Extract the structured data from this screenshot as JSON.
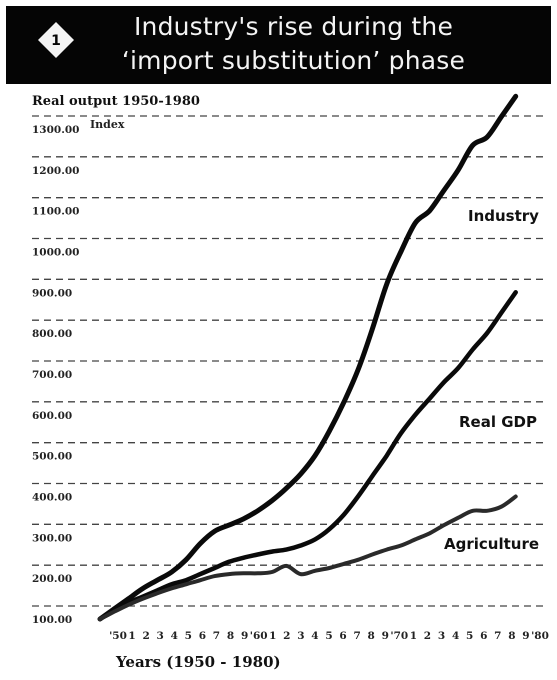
{
  "header": {
    "badge": "1",
    "title_line1": "Industry's rise during the",
    "title_line2": "‘import substitution’ phase"
  },
  "chart_data": {
    "type": "line",
    "title": "Industry's rise during the ‘import substitution’ phase",
    "subtitle": "Real output 1950-1980",
    "ylabel": "Index",
    "xlabel": "Years (1950 - 1980)",
    "ylim": [
      100,
      1300
    ],
    "yticks": [
      "100.00",
      "200.00",
      "300.00",
      "400.00",
      "500.00",
      "600.00",
      "700.00",
      "800.00",
      "900.00",
      "1000.00",
      "1100.00",
      "1200.00",
      "1300.00"
    ],
    "xlim": [
      1950,
      1980
    ],
    "x_tick_labels": [
      "'50",
      "1",
      "2",
      "3",
      "4",
      "5",
      "6",
      "7",
      "8",
      "9",
      "'60",
      "1",
      "2",
      "3",
      "4",
      "5",
      "6",
      "7",
      "8",
      "9",
      "'70",
      "1",
      "2",
      "3",
      "4",
      "5",
      "6",
      "7",
      "8",
      "9",
      "'80"
    ],
    "grid": "horizontal dashed",
    "colors": {
      "Industry": "#0a0a0a",
      "Real GDP": "#0a0a0a",
      "Agriculture": "#2a2a2a"
    },
    "series": [
      {
        "name": "Industry",
        "x": [
          1950,
          1951,
          1952,
          1953,
          1954,
          1955,
          1956,
          1957,
          1958,
          1959,
          1960,
          1961,
          1962,
          1963,
          1964,
          1965,
          1966,
          1967,
          1968,
          1969,
          1970,
          1971,
          1972,
          1973,
          1974,
          1975,
          1976,
          1977,
          1978,
          1979
        ],
        "values": [
          100,
          125,
          150,
          175,
          195,
          215,
          245,
          285,
          315,
          330,
          345,
          365,
          390,
          420,
          455,
          500,
          560,
          630,
          710,
          810,
          920,
          1000,
          1070,
          1100,
          1150,
          1200,
          1260,
          1280,
          1330,
          1380
        ]
      },
      {
        "name": "Real GDP",
        "x": [
          1950,
          1951,
          1952,
          1953,
          1954,
          1955,
          1956,
          1957,
          1958,
          1959,
          1960,
          1961,
          1962,
          1963,
          1964,
          1965,
          1966,
          1967,
          1968,
          1969,
          1970,
          1971,
          1972,
          1973,
          1974,
          1975,
          1976,
          1977,
          1978,
          1979
        ],
        "values": [
          100,
          120,
          140,
          155,
          170,
          185,
          195,
          210,
          225,
          240,
          250,
          258,
          265,
          270,
          280,
          295,
          320,
          355,
          400,
          450,
          500,
          555,
          600,
          640,
          680,
          715,
          760,
          800,
          850,
          900
        ]
      },
      {
        "name": "Agriculture",
        "x": [
          1950,
          1951,
          1952,
          1953,
          1954,
          1955,
          1956,
          1957,
          1958,
          1959,
          1960,
          1961,
          1962,
          1963,
          1964,
          1965,
          1966,
          1967,
          1968,
          1969,
          1970,
          1971,
          1972,
          1973,
          1974,
          1975,
          1976,
          1977,
          1978,
          1979
        ],
        "values": [
          100,
          118,
          135,
          150,
          163,
          175,
          185,
          195,
          205,
          210,
          212,
          212,
          215,
          230,
          210,
          218,
          225,
          235,
          245,
          258,
          270,
          280,
          295,
          310,
          330,
          348,
          365,
          365,
          375,
          400
        ]
      }
    ]
  }
}
